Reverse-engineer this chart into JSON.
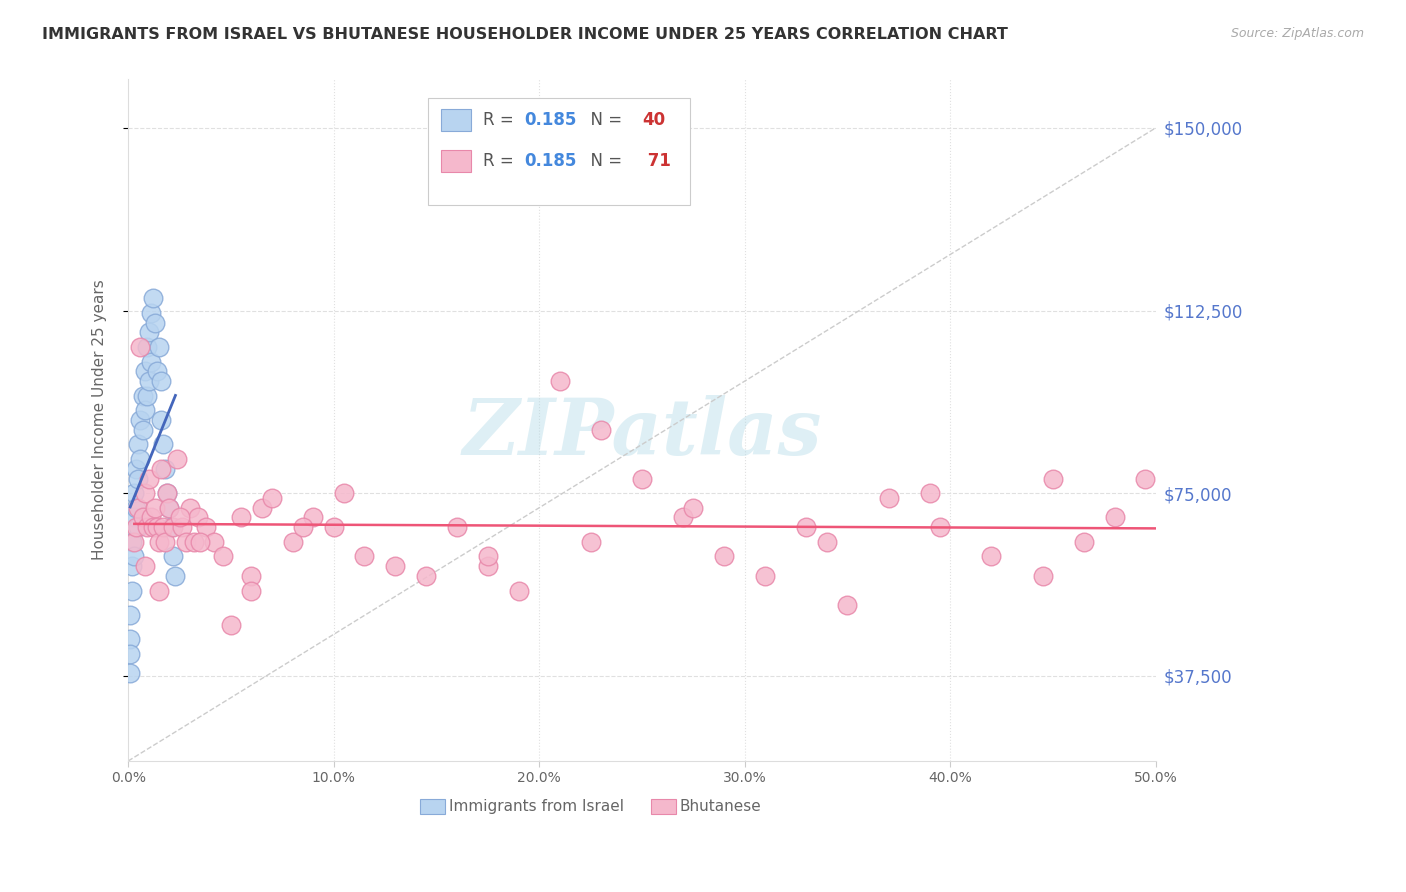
{
  "title": "IMMIGRANTS FROM ISRAEL VS BHUTANESE HOUSEHOLDER INCOME UNDER 25 YEARS CORRELATION CHART",
  "source": "Source: ZipAtlas.com",
  "ylabel": "Householder Income Under 25 years",
  "ytick_values": [
    37500,
    75000,
    112500,
    150000
  ],
  "ytick_labels": [
    "$37,500",
    "$75,000",
    "$112,500",
    "$150,000"
  ],
  "xlim": [
    0.0,
    0.5
  ],
  "ylim": [
    20000,
    160000
  ],
  "watermark": "ZIPatlas",
  "israel_color": "#b8d4f0",
  "bhutan_color": "#f5b8cc",
  "israel_edge": "#88aad8",
  "bhutan_edge": "#e888aa",
  "israel_trend_color": "#4466bb",
  "bhutan_trend_color": "#ee5577",
  "grid_color": "#e0e0e0",
  "diag_color": "#cccccc",
  "israel_x": [
    0.001,
    0.001,
    0.001,
    0.001,
    0.002,
    0.002,
    0.002,
    0.003,
    0.003,
    0.003,
    0.004,
    0.004,
    0.005,
    0.005,
    0.005,
    0.006,
    0.006,
    0.007,
    0.007,
    0.008,
    0.008,
    0.009,
    0.009,
    0.01,
    0.01,
    0.011,
    0.011,
    0.012,
    0.013,
    0.014,
    0.015,
    0.016,
    0.016,
    0.017,
    0.018,
    0.019,
    0.02,
    0.021,
    0.022,
    0.023
  ],
  "israel_y": [
    50000,
    45000,
    42000,
    38000,
    65000,
    60000,
    55000,
    75000,
    70000,
    62000,
    80000,
    72000,
    85000,
    78000,
    68000,
    90000,
    82000,
    95000,
    88000,
    100000,
    92000,
    105000,
    95000,
    108000,
    98000,
    112000,
    102000,
    115000,
    110000,
    100000,
    105000,
    98000,
    90000,
    85000,
    80000,
    75000,
    72000,
    68000,
    62000,
    58000
  ],
  "bhutan_x": [
    0.003,
    0.004,
    0.005,
    0.006,
    0.007,
    0.008,
    0.009,
    0.01,
    0.011,
    0.012,
    0.013,
    0.014,
    0.015,
    0.016,
    0.017,
    0.018,
    0.019,
    0.02,
    0.022,
    0.024,
    0.026,
    0.028,
    0.03,
    0.032,
    0.034,
    0.038,
    0.042,
    0.046,
    0.05,
    0.055,
    0.06,
    0.065,
    0.07,
    0.08,
    0.09,
    0.1,
    0.115,
    0.13,
    0.145,
    0.16,
    0.175,
    0.19,
    0.21,
    0.23,
    0.25,
    0.27,
    0.29,
    0.31,
    0.33,
    0.35,
    0.37,
    0.395,
    0.42,
    0.445,
    0.465,
    0.48,
    0.495,
    0.025,
    0.035,
    0.06,
    0.085,
    0.105,
    0.175,
    0.225,
    0.275,
    0.34,
    0.39,
    0.45,
    0.008,
    0.015
  ],
  "bhutan_y": [
    65000,
    68000,
    72000,
    105000,
    70000,
    75000,
    68000,
    78000,
    70000,
    68000,
    72000,
    68000,
    65000,
    80000,
    68000,
    65000,
    75000,
    72000,
    68000,
    82000,
    68000,
    65000,
    72000,
    65000,
    70000,
    68000,
    65000,
    62000,
    48000,
    70000,
    58000,
    72000,
    74000,
    65000,
    70000,
    68000,
    62000,
    60000,
    58000,
    68000,
    60000,
    55000,
    98000,
    88000,
    78000,
    70000,
    62000,
    58000,
    68000,
    52000,
    74000,
    68000,
    62000,
    58000,
    65000,
    70000,
    78000,
    70000,
    65000,
    55000,
    68000,
    75000,
    62000,
    65000,
    72000,
    65000,
    75000,
    78000,
    60000,
    55000
  ],
  "xtick_positions": [
    0.0,
    0.1,
    0.2,
    0.3,
    0.4,
    0.5
  ],
  "xtick_labels": [
    "0.0%",
    "10.0%",
    "20.0%",
    "30.0%",
    "40.0%",
    "50.0%"
  ]
}
